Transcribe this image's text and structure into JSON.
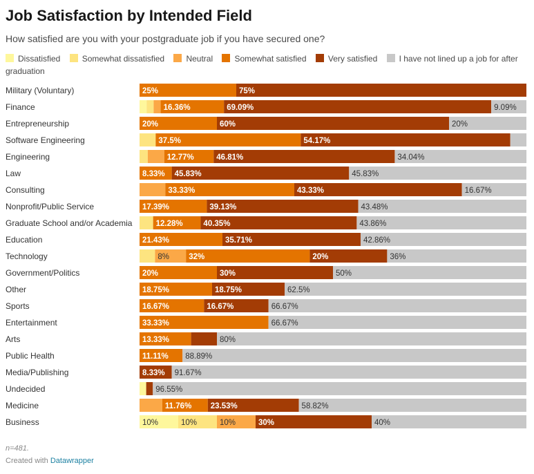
{
  "title": "Job Satisfaction by Intended Field",
  "subtitle": "How satisfied are you with your postgraduate job if you have secured one?",
  "legend": [
    {
      "label": "Dissatisfied",
      "color": "#fef79c"
    },
    {
      "label": "Somewhat dissatisfied",
      "color": "#fde480"
    },
    {
      "label": "Neutral",
      "color": "#fba847"
    },
    {
      "label": "Somewhat satisfied",
      "color": "#e47400"
    },
    {
      "label": "Very satisfied",
      "color": "#a33c05"
    },
    {
      "label": "I have not lined up a job for after graduation",
      "color": "#c8c8c8"
    }
  ],
  "chart_data": {
    "type": "bar",
    "orientation": "horizontal",
    "stacked": true,
    "normalized_to_percent": true,
    "xlim": [
      0,
      100
    ],
    "categories": [
      "Military (Voluntary)",
      "Finance",
      "Entrepreneurship",
      "Software Engineering",
      "Engineering",
      "Law",
      "Consulting",
      "Nonprofit/Public Service",
      "Graduate School and/or Academia",
      "Education",
      "Technology",
      "Government/Politics",
      "Other",
      "Sports",
      "Entertainment",
      "Arts",
      "Public Health",
      "Media/Publishing",
      "Undecided",
      "Medicine",
      "Business"
    ],
    "series": [
      {
        "name": "Dissatisfied",
        "values": [
          0,
          1.82,
          0,
          0,
          0,
          0,
          0,
          0,
          0,
          0,
          0,
          0,
          0,
          0,
          0,
          0,
          0,
          0,
          1.72,
          0,
          10
        ]
      },
      {
        "name": "Somewhat dissatisfied",
        "values": [
          0,
          1.82,
          0,
          4.17,
          2.13,
          0,
          0,
          0,
          3.51,
          0,
          4,
          0,
          0,
          0,
          0,
          0,
          0,
          0,
          0,
          0,
          10
        ]
      },
      {
        "name": "Neutral",
        "values": [
          0,
          1.82,
          0,
          0,
          4.26,
          0,
          6.67,
          0,
          0,
          0,
          8,
          0,
          0,
          0,
          0,
          0,
          0,
          0,
          0,
          5.88,
          10
        ]
      },
      {
        "name": "Somewhat satisfied",
        "values": [
          25,
          16.36,
          20,
          37.5,
          12.77,
          8.33,
          33.33,
          17.39,
          12.28,
          21.43,
          32,
          20,
          18.75,
          16.67,
          33.33,
          13.33,
          11.11,
          0,
          0,
          11.76,
          0
        ]
      },
      {
        "name": "Very satisfied",
        "values": [
          75,
          69.09,
          60,
          54.17,
          46.81,
          45.83,
          43.33,
          39.13,
          40.35,
          35.71,
          20,
          30,
          18.75,
          16.67,
          0,
          6.67,
          0,
          8.33,
          1.72,
          23.53,
          30
        ]
      },
      {
        "name": "I have not lined up a job for after graduation",
        "values": [
          0,
          9.09,
          20,
          4.17,
          34.04,
          45.83,
          16.67,
          43.48,
          43.86,
          42.86,
          36,
          50,
          62.5,
          66.67,
          66.67,
          80,
          88.89,
          91.67,
          96.55,
          58.82,
          40
        ]
      }
    ],
    "labels": [
      [
        "",
        "",
        "",
        "25%",
        "75%",
        ""
      ],
      [
        "",
        "",
        "",
        "16.36%",
        "69.09%",
        "9.09%"
      ],
      [
        "",
        "",
        "",
        "20%",
        "60%",
        "20%"
      ],
      [
        "",
        "",
        "",
        "37.5%",
        "54.17%",
        ""
      ],
      [
        "",
        "",
        "",
        "12.77%",
        "46.81%",
        "34.04%"
      ],
      [
        "",
        "",
        "",
        "8.33%",
        "45.83%",
        "45.83%"
      ],
      [
        "",
        "",
        "",
        "33.33%",
        "43.33%",
        "16.67%"
      ],
      [
        "",
        "",
        "",
        "17.39%",
        "39.13%",
        "43.48%"
      ],
      [
        "",
        "",
        "",
        "12.28%",
        "40.35%",
        "43.86%"
      ],
      [
        "",
        "",
        "",
        "21.43%",
        "35.71%",
        "42.86%"
      ],
      [
        "",
        "",
        "8%",
        "32%",
        "20%",
        "36%"
      ],
      [
        "",
        "",
        "",
        "20%",
        "30%",
        "50%"
      ],
      [
        "",
        "",
        "",
        "18.75%",
        "18.75%",
        "62.5%"
      ],
      [
        "",
        "",
        "",
        "16.67%",
        "16.67%",
        "66.67%"
      ],
      [
        "",
        "",
        "",
        "33.33%",
        "",
        "66.67%"
      ],
      [
        "",
        "",
        "",
        "13.33%",
        "",
        "80%"
      ],
      [
        "",
        "",
        "",
        "11.11%",
        "",
        "88.89%"
      ],
      [
        "",
        "",
        "",
        "",
        "8.33%",
        "91.67%"
      ],
      [
        "",
        "",
        "",
        "",
        "",
        "96.55%"
      ],
      [
        "",
        "",
        "",
        "11.76%",
        "23.53%",
        "58.82%"
      ],
      [
        "10%",
        "10%",
        "10%",
        "",
        "30%",
        "40%"
      ]
    ]
  },
  "footer": {
    "note": "n=481.",
    "credit_prefix": "Created with",
    "credit_link": "Datawrapper"
  }
}
